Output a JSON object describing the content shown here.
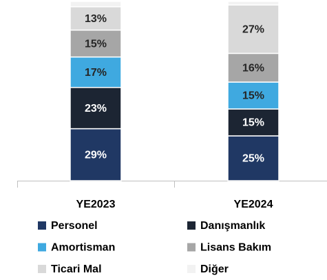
{
  "chart_data": {
    "type": "stacked_bar",
    "categories": [
      "YE2023",
      "YE2024"
    ],
    "ylim": [
      0,
      100
    ],
    "series": [
      {
        "name": "Personel",
        "color": "#203864",
        "values": [
          29,
          25
        ],
        "value_labels": [
          "29%",
          "25%"
        ]
      },
      {
        "name": "Danışmanlık",
        "color": "#1c2533",
        "values": [
          23,
          15
        ],
        "value_labels": [
          "23%",
          "15%"
        ]
      },
      {
        "name": "Amortisman",
        "color": "#3fa9e0",
        "values": [
          17,
          15
        ],
        "value_labels": [
          "17%",
          "15%"
        ]
      },
      {
        "name": "Lisans Bakım",
        "color": "#a6a6a6",
        "values": [
          15,
          16
        ],
        "value_labels": [
          "15%",
          "16%"
        ]
      },
      {
        "name": "Ticari Mal",
        "color": "#d9d9d9",
        "values": [
          13,
          27
        ],
        "value_labels": [
          "13%",
          "27%"
        ]
      },
      {
        "name": "Diğer",
        "color": "#f2f2f2",
        "values": [
          3,
          2
        ],
        "value_labels": [
          null,
          null
        ]
      }
    ]
  }
}
